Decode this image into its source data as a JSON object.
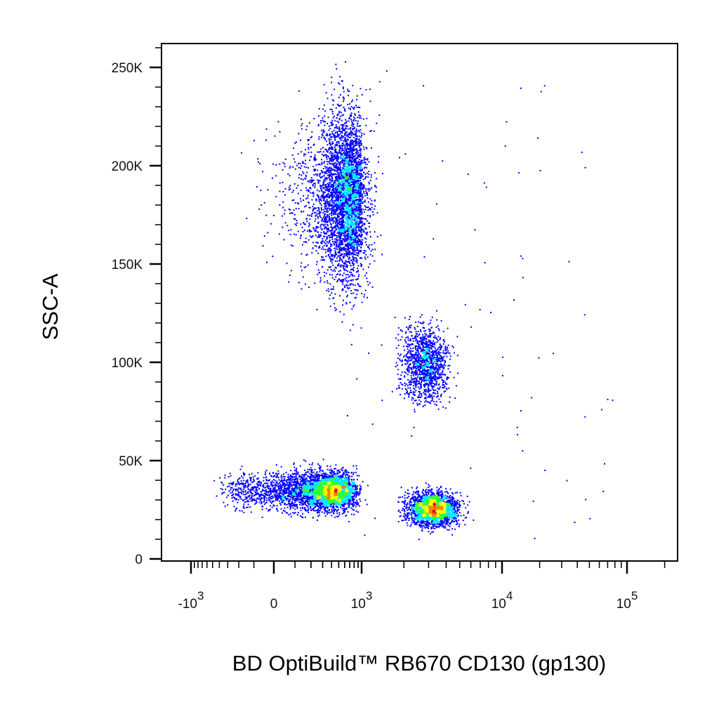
{
  "chart_data": {
    "type": "scatter",
    "subtype": "flow-cytometry density dot plot",
    "xlabel": "BD OptiBuild™ RB670 CD130 (gp130)",
    "ylabel": "SSC-A",
    "x_scale": "biexponential",
    "y_scale": "linear",
    "xlim": [
      -2000,
      200000
    ],
    "ylim": [
      -5000,
      262144
    ],
    "grid": false,
    "legend": "none",
    "density_colors": [
      "#0000ff",
      "#00e5ff",
      "#33ff33",
      "#ffff00",
      "#ff7f00",
      "#ff0000"
    ],
    "x_ticks": [
      {
        "value": -1000,
        "base": "-10",
        "exp": "3"
      },
      {
        "value": 0,
        "base": "0",
        "exp": ""
      },
      {
        "value": 1000,
        "base": "10",
        "exp": "3"
      },
      {
        "value": 10000,
        "base": "10",
        "exp": "4"
      },
      {
        "value": 100000,
        "base": "10",
        "exp": "5"
      }
    ],
    "y_ticks": [
      {
        "value": 0,
        "label": "0"
      },
      {
        "value": 50000,
        "label": "50K"
      },
      {
        "value": 100000,
        "label": "100K"
      },
      {
        "value": 150000,
        "label": "150K"
      },
      {
        "value": 200000,
        "label": "200K"
      },
      {
        "value": 250000,
        "label": "250K"
      }
    ],
    "populations": [
      {
        "x_center": 600,
        "y_center": 185000,
        "x_spread": 350,
        "y_spread": 30000,
        "count": 4200
      },
      {
        "x_center": 2800,
        "y_center": 100000,
        "x_spread": 900,
        "y_spread": 13000,
        "count": 1300
      },
      {
        "x_center": 300,
        "y_center": 35000,
        "x_spread": 350,
        "y_spread": 7000,
        "count": 3600
      },
      {
        "x_center": 3200,
        "y_center": 26000,
        "x_spread": 1100,
        "y_spread": 6000,
        "count": 2200
      }
    ]
  }
}
